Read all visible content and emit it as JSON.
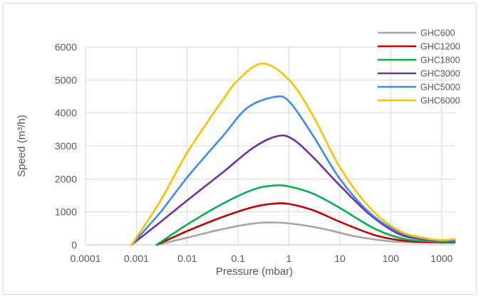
{
  "chart_data": {
    "type": "line",
    "xlabel": "Pressure (mbar)",
    "ylabel": "Speed (m³/h)",
    "xscale": "log",
    "xlim": [
      0.0001,
      1800
    ],
    "ylim": [
      0,
      6000
    ],
    "x_ticks": [
      0.0001,
      0.001,
      0.01,
      0.1,
      1,
      10,
      100,
      1000
    ],
    "x_tick_labels": [
      "0.0001",
      "0.001",
      "0.01",
      "0.1",
      "1",
      "10",
      "100",
      "1000"
    ],
    "y_ticks": [
      0,
      1000,
      2000,
      3000,
      4000,
      5000,
      6000
    ],
    "y_tick_labels": [
      "0",
      "1000",
      "2000",
      "3000",
      "4000",
      "5000",
      "6000"
    ],
    "grid": true,
    "legend_position": "top-right",
    "series": [
      {
        "name": "GHC600",
        "color": "#a6a6a6",
        "points": [
          [
            0.0025,
            0
          ],
          [
            0.01,
            220
          ],
          [
            0.05,
            480
          ],
          [
            0.2,
            650
          ],
          [
            0.5,
            680
          ],
          [
            1.5,
            620
          ],
          [
            5,
            480
          ],
          [
            20,
            260
          ],
          [
            100,
            110
          ],
          [
            500,
            70
          ],
          [
            1800,
            65
          ]
        ]
      },
      {
        "name": "GHC1200",
        "color": "#c00000",
        "points": [
          [
            0.0025,
            0
          ],
          [
            0.01,
            420
          ],
          [
            0.05,
            850
          ],
          [
            0.2,
            1150
          ],
          [
            0.5,
            1250
          ],
          [
            1,
            1240
          ],
          [
            3,
            1050
          ],
          [
            10,
            700
          ],
          [
            50,
            290
          ],
          [
            200,
            120
          ],
          [
            1000,
            80
          ],
          [
            1800,
            78
          ]
        ]
      },
      {
        "name": "GHC1800",
        "color": "#00b050",
        "points": [
          [
            0.0025,
            0
          ],
          [
            0.01,
            620
          ],
          [
            0.05,
            1250
          ],
          [
            0.2,
            1680
          ],
          [
            0.5,
            1800
          ],
          [
            1,
            1770
          ],
          [
            3,
            1550
          ],
          [
            10,
            1120
          ],
          [
            50,
            480
          ],
          [
            200,
            170
          ],
          [
            1000,
            100
          ],
          [
            1800,
            95
          ]
        ]
      },
      {
        "name": "GHC3000",
        "color": "#7030a0",
        "points": [
          [
            0.0008,
            0
          ],
          [
            0.003,
            700
          ],
          [
            0.01,
            1350
          ],
          [
            0.05,
            2200
          ],
          [
            0.2,
            2950
          ],
          [
            0.6,
            3300
          ],
          [
            1.2,
            3200
          ],
          [
            3,
            2650
          ],
          [
            10,
            1800
          ],
          [
            40,
            900
          ],
          [
            150,
            320
          ],
          [
            500,
            160
          ],
          [
            1000,
            140
          ],
          [
            1800,
            130
          ]
        ]
      },
      {
        "name": "GHC5000",
        "color": "#3b8de6",
        "points": [
          [
            0.0008,
            0
          ],
          [
            0.003,
            1000
          ],
          [
            0.01,
            2050
          ],
          [
            0.05,
            3300
          ],
          [
            0.15,
            4150
          ],
          [
            0.5,
            4480
          ],
          [
            1,
            4350
          ],
          [
            3,
            3300
          ],
          [
            10,
            2000
          ],
          [
            40,
            950
          ],
          [
            150,
            380
          ],
          [
            500,
            180
          ],
          [
            1000,
            145
          ],
          [
            1800,
            145
          ]
        ]
      },
      {
        "name": "GHC6000",
        "color": "#ffc000",
        "points": [
          [
            0.0008,
            0
          ],
          [
            0.003,
            1350
          ],
          [
            0.01,
            2800
          ],
          [
            0.05,
            4400
          ],
          [
            0.1,
            5000
          ],
          [
            0.3,
            5500
          ],
          [
            1,
            5000
          ],
          [
            3,
            3900
          ],
          [
            10,
            2350
          ],
          [
            40,
            1100
          ],
          [
            150,
            420
          ],
          [
            500,
            200
          ],
          [
            1000,
            145
          ],
          [
            1800,
            175
          ]
        ]
      }
    ]
  }
}
